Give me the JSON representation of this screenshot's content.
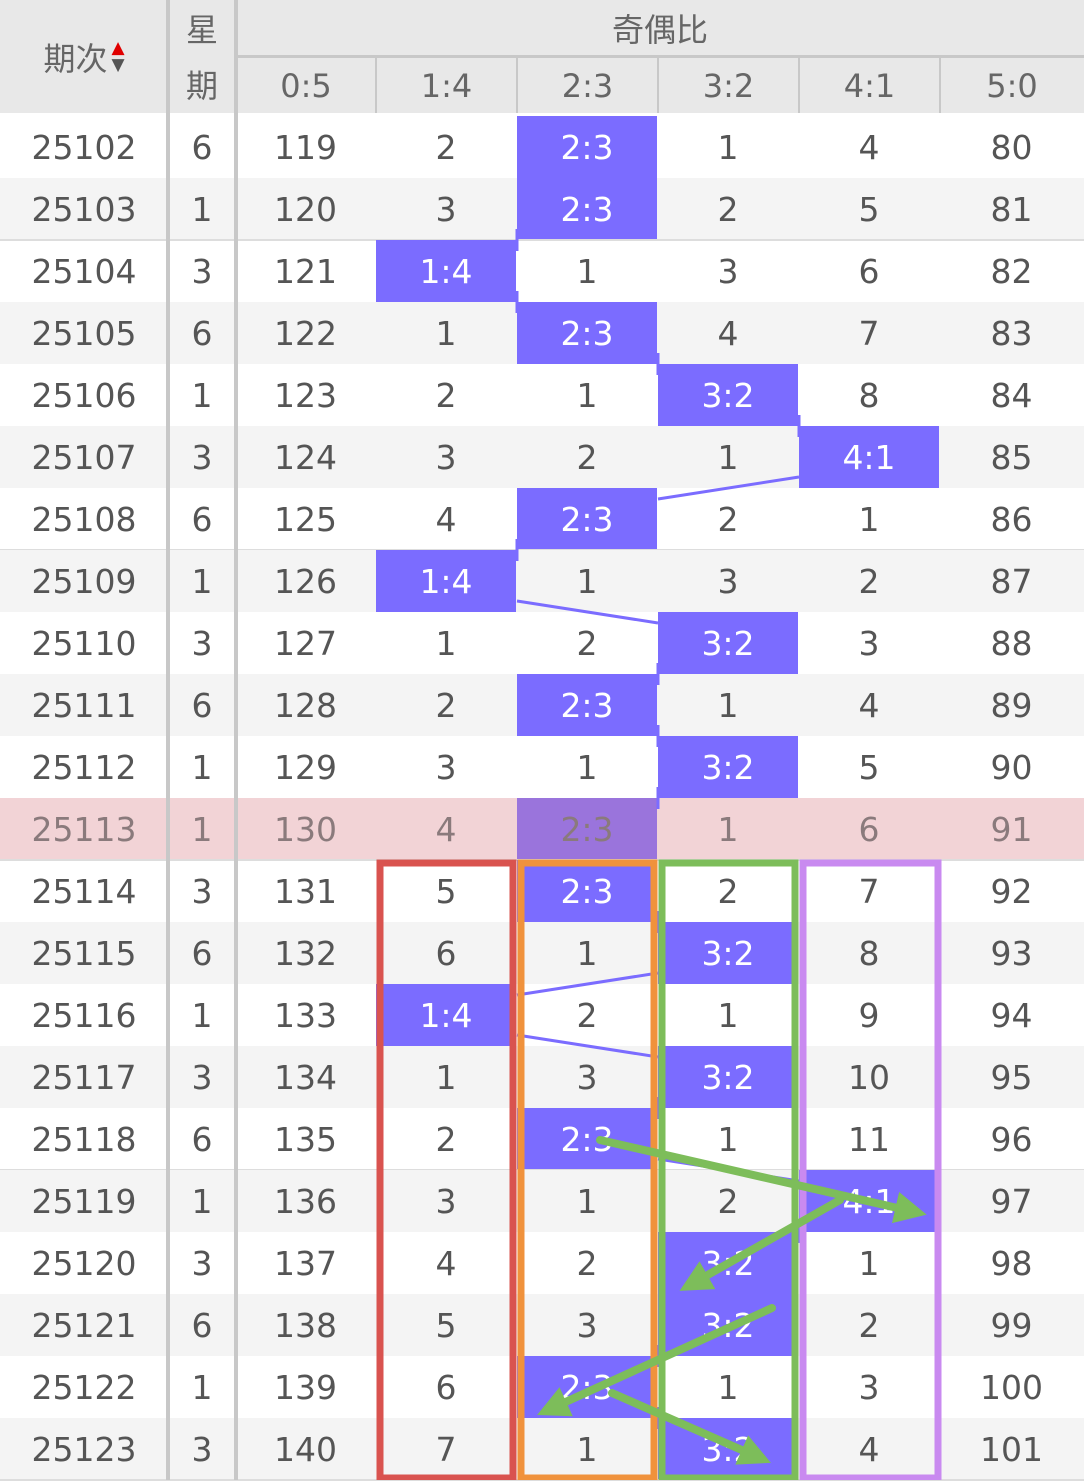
{
  "header": {
    "issue": "期次",
    "weekday_line1": "星",
    "weekday_line2": "期",
    "group": "奇偶比",
    "ratios": [
      "0:5",
      "1:4",
      "2:3",
      "3:2",
      "4:1",
      "5:0"
    ]
  },
  "colors": {
    "hit": "#7b6cff",
    "current_row": "#f2d3d6",
    "sort_up": "#e00000",
    "box_red": "#d9534f",
    "box_orange": "#f0923c",
    "box_green": "#7dbd5a",
    "box_purple": "#c98af0",
    "arrow": "#7dbd5a"
  },
  "current_issue": "25113",
  "rows": [
    {
      "issue": "25102",
      "weekday": "6",
      "cells": [
        "119",
        "2",
        "2:3",
        "1",
        "4",
        "80"
      ],
      "hit": 2
    },
    {
      "issue": "25103",
      "weekday": "1",
      "cells": [
        "120",
        "3",
        "2:3",
        "2",
        "5",
        "81"
      ],
      "hit": 2
    },
    {
      "issue": "25104",
      "weekday": "3",
      "cells": [
        "121",
        "1:4",
        "1",
        "3",
        "6",
        "82"
      ],
      "hit": 1
    },
    {
      "issue": "25105",
      "weekday": "6",
      "cells": [
        "122",
        "1",
        "2:3",
        "4",
        "7",
        "83"
      ],
      "hit": 2
    },
    {
      "issue": "25106",
      "weekday": "1",
      "cells": [
        "123",
        "2",
        "1",
        "3:2",
        "8",
        "84"
      ],
      "hit": 3
    },
    {
      "issue": "25107",
      "weekday": "3",
      "cells": [
        "124",
        "3",
        "2",
        "1",
        "4:1",
        "85"
      ],
      "hit": 4
    },
    {
      "issue": "25108",
      "weekday": "6",
      "cells": [
        "125",
        "4",
        "2:3",
        "2",
        "1",
        "86"
      ],
      "hit": 2
    },
    {
      "issue": "25109",
      "weekday": "1",
      "cells": [
        "126",
        "1:4",
        "1",
        "3",
        "2",
        "87"
      ],
      "hit": 1
    },
    {
      "issue": "25110",
      "weekday": "3",
      "cells": [
        "127",
        "1",
        "2",
        "3:2",
        "3",
        "88"
      ],
      "hit": 3
    },
    {
      "issue": "25111",
      "weekday": "6",
      "cells": [
        "128",
        "2",
        "2:3",
        "1",
        "4",
        "89"
      ],
      "hit": 2
    },
    {
      "issue": "25112",
      "weekday": "1",
      "cells": [
        "129",
        "3",
        "1",
        "3:2",
        "5",
        "90"
      ],
      "hit": 3
    },
    {
      "issue": "25113",
      "weekday": "1",
      "cells": [
        "130",
        "4",
        "2:3",
        "1",
        "6",
        "91"
      ],
      "hit": 2
    },
    {
      "issue": "25114",
      "weekday": "3",
      "cells": [
        "131",
        "5",
        "2:3",
        "2",
        "7",
        "92"
      ],
      "hit": 2
    },
    {
      "issue": "25115",
      "weekday": "6",
      "cells": [
        "132",
        "6",
        "1",
        "3:2",
        "8",
        "93"
      ],
      "hit": 3
    },
    {
      "issue": "25116",
      "weekday": "1",
      "cells": [
        "133",
        "1:4",
        "2",
        "1",
        "9",
        "94"
      ],
      "hit": 1
    },
    {
      "issue": "25117",
      "weekday": "3",
      "cells": [
        "134",
        "1",
        "3",
        "3:2",
        "10",
        "95"
      ],
      "hit": 3
    },
    {
      "issue": "25118",
      "weekday": "6",
      "cells": [
        "135",
        "2",
        "2:3",
        "1",
        "11",
        "96"
      ],
      "hit": 2
    },
    {
      "issue": "25119",
      "weekday": "1",
      "cells": [
        "136",
        "3",
        "1",
        "2",
        "4:1",
        "97"
      ],
      "hit": 4
    },
    {
      "issue": "25120",
      "weekday": "3",
      "cells": [
        "137",
        "4",
        "2",
        "3:2",
        "1",
        "98"
      ],
      "hit": 3
    },
    {
      "issue": "25121",
      "weekday": "6",
      "cells": [
        "138",
        "5",
        "3",
        "3:2",
        "2",
        "99"
      ],
      "hit": 3
    },
    {
      "issue": "25122",
      "weekday": "1",
      "cells": [
        "139",
        "6",
        "2:3",
        "1",
        "3",
        "100"
      ],
      "hit": 2
    },
    {
      "issue": "25123",
      "weekday": "3",
      "cells": [
        "140",
        "7",
        "1",
        "3:2",
        "4",
        "101"
      ],
      "hit": 3
    }
  ]
}
